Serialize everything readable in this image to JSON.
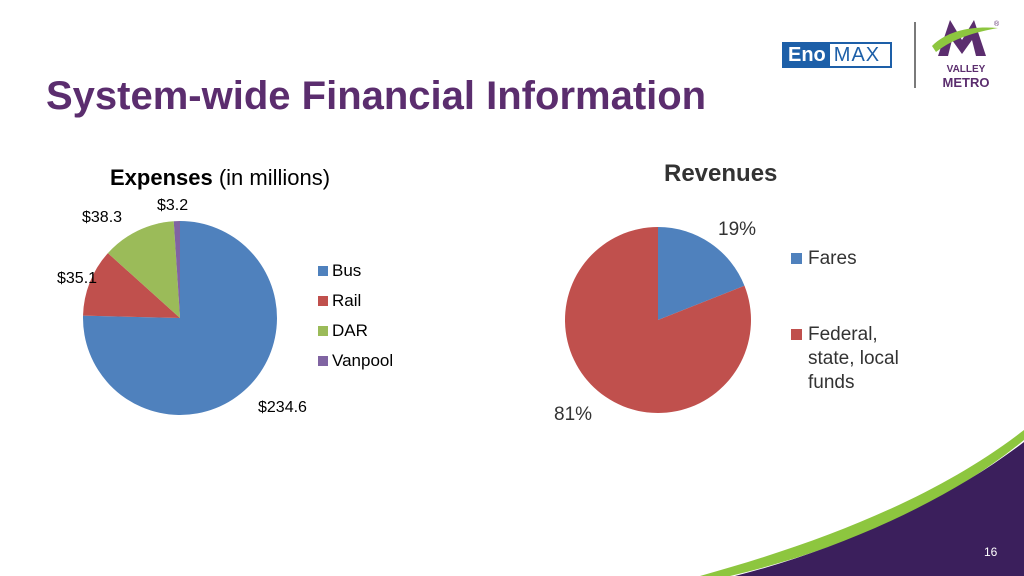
{
  "title": "System-wide Financial Information",
  "page_number": "16",
  "logos": {
    "eno_part1": "Eno",
    "eno_part2": "MAX",
    "vm_line1": "VALLEY",
    "vm_line2": "METRO",
    "vm_mark": "M",
    "vm_registered": "®"
  },
  "colors": {
    "title": "#5b2d6e",
    "bus": "#4f81bd",
    "rail": "#c0504d",
    "dar": "#9bbb59",
    "vanpool": "#8064a2",
    "fares": "#4f81bd",
    "federal": "#c0504d",
    "swoosh_purple": "#3b1f5c",
    "swoosh_green": "#8dc63f"
  },
  "expenses": {
    "title_bold": "Expenses",
    "title_rest": " (in millions)"
  },
  "revenues": {
    "title": "Revenues"
  },
  "chart_data": [
    {
      "type": "pie",
      "title": "Expenses (in millions)",
      "categories": [
        "Bus",
        "Rail",
        "DAR",
        "Vanpool"
      ],
      "values": [
        234.6,
        35.1,
        38.3,
        3.2
      ],
      "data_labels": [
        "$234.6",
        "$35.1",
        "$38.3",
        "$3.2"
      ],
      "legend": [
        "Bus",
        "Rail",
        "DAR",
        "Vanpool"
      ],
      "legend_position": "right"
    },
    {
      "type": "pie",
      "title": "Revenues",
      "categories": [
        "Fares",
        "Federal, state, local funds"
      ],
      "values": [
        19,
        81
      ],
      "data_labels": [
        "19%",
        "81%"
      ],
      "legend": [
        "Fares",
        "Federal,",
        "state, local",
        "funds"
      ],
      "legend_position": "right"
    }
  ]
}
